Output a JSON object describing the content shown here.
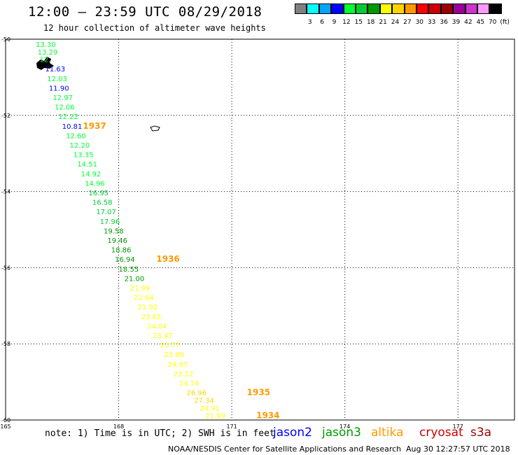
{
  "header": {
    "title": "12:00 – 23:59 UTC 08/29/2018",
    "subtitle": "12 hour collection of altimeter wave heights"
  },
  "colorbar": {
    "colors": [
      "#808080",
      "#00ffff",
      "#00a6ff",
      "#0000ff",
      "#00ff33",
      "#00cc33",
      "#009900",
      "#ffff00",
      "#ffd400",
      "#ff9900",
      "#ff0000",
      "#cc0000",
      "#990000",
      "#990099",
      "#cc33cc",
      "#ff99ff",
      "#000000"
    ],
    "labels": [
      "3",
      "6",
      "9",
      "12",
      "15",
      "18",
      "21",
      "24",
      "27",
      "30",
      "33",
      "36",
      "39",
      "42",
      "45",
      "70",
      "(ft)"
    ]
  },
  "chart_data": {
    "type": "scatter",
    "title": "12:00 – 23:59 UTC 08/29/2018",
    "subtitle": "12 hour collection of altimeter wave heights",
    "xlim": [
      165,
      178.5
    ],
    "ylim": [
      -60,
      -50
    ],
    "x_ticks": [
      "165",
      "168",
      "171",
      "174",
      "177"
    ],
    "x_tick_values": [
      165,
      168,
      171,
      174,
      177
    ],
    "y_ticks": [
      "-50",
      "-52",
      "-54",
      "-56",
      "-58",
      "-60"
    ],
    "y_tick_values": [
      -50,
      -52,
      -54,
      -56,
      -58,
      -60
    ],
    "grid": "dotted",
    "series": [
      {
        "name": "altika",
        "points": [
          {
            "lon": 165.8,
            "lat": -50.2,
            "v": "13.30",
            "c": "#00ff33"
          },
          {
            "lon": 165.85,
            "lat": -50.4,
            "v": "13.29",
            "c": "#00ff33"
          },
          {
            "lon": 165.9,
            "lat": -50.6,
            "v": "12.",
            "c": "#00ff33"
          },
          {
            "lon": 166.05,
            "lat": -50.85,
            "v": "11.63",
            "c": "#0000ff"
          },
          {
            "lon": 166.1,
            "lat": -51.1,
            "v": "12.03",
            "c": "#00ff33"
          },
          {
            "lon": 166.15,
            "lat": -51.35,
            "v": "11.90",
            "c": "#0000ff"
          },
          {
            "lon": 166.25,
            "lat": -51.6,
            "v": "12.97",
            "c": "#00ff33"
          },
          {
            "lon": 166.3,
            "lat": -51.85,
            "v": "12.06",
            "c": "#00ff33"
          },
          {
            "lon": 166.4,
            "lat": -52.1,
            "v": "12.22",
            "c": "#00ff33"
          },
          {
            "lon": 166.5,
            "lat": -52.35,
            "v": "10.81",
            "c": "#0000ff"
          },
          {
            "lon": 166.6,
            "lat": -52.6,
            "v": "12.60",
            "c": "#00ff33"
          },
          {
            "lon": 166.7,
            "lat": -52.85,
            "v": "12.20",
            "c": "#00ff33"
          },
          {
            "lon": 166.8,
            "lat": -53.1,
            "v": "13.35",
            "c": "#00ff33"
          },
          {
            "lon": 166.9,
            "lat": -53.35,
            "v": "14.51",
            "c": "#00ff33"
          },
          {
            "lon": 167.0,
            "lat": -53.6,
            "v": "14.92",
            "c": "#00ff33"
          },
          {
            "lon": 167.1,
            "lat": -53.85,
            "v": "14.96",
            "c": "#00ff33"
          },
          {
            "lon": 167.2,
            "lat": -54.1,
            "v": "16.95",
            "c": "#00cc33"
          },
          {
            "lon": 167.3,
            "lat": -54.35,
            "v": "16.58",
            "c": "#00cc33"
          },
          {
            "lon": 167.4,
            "lat": -54.6,
            "v": "17.07",
            "c": "#00cc33"
          },
          {
            "lon": 167.5,
            "lat": -54.85,
            "v": "17.96",
            "c": "#00cc33"
          },
          {
            "lon": 167.6,
            "lat": -55.1,
            "v": "19.58",
            "c": "#009900"
          },
          {
            "lon": 167.7,
            "lat": -55.35,
            "v": "19.46",
            "c": "#009900"
          },
          {
            "lon": 167.8,
            "lat": -55.6,
            "v": "18.86",
            "c": "#009900"
          },
          {
            "lon": 167.9,
            "lat": -55.85,
            "v": "16.94",
            "c": "#009900"
          },
          {
            "lon": 168.0,
            "lat": -56.1,
            "v": "18.55",
            "c": "#009900"
          },
          {
            "lon": 168.15,
            "lat": -56.35,
            "v": "21.00",
            "c": "#009900"
          },
          {
            "lon": 168.3,
            "lat": -56.6,
            "v": "21.99",
            "c": "#ffff00"
          },
          {
            "lon": 168.4,
            "lat": -56.85,
            "v": "22.64",
            "c": "#ffff00"
          },
          {
            "lon": 168.5,
            "lat": -57.1,
            "v": "21.92",
            "c": "#ffff00"
          },
          {
            "lon": 168.6,
            "lat": -57.35,
            "v": "23.65",
            "c": "#ffff00"
          },
          {
            "lon": 168.75,
            "lat": -57.6,
            "v": "24.04",
            "c": "#ffff00"
          },
          {
            "lon": 168.9,
            "lat": -57.85,
            "v": "23.47",
            "c": "#ffff00"
          },
          {
            "lon": 169.1,
            "lat": -58.1,
            "v": "23.77",
            "c": "#ffff00"
          },
          {
            "lon": 169.2,
            "lat": -58.35,
            "v": "23.89",
            "c": "#ffff00"
          },
          {
            "lon": 169.3,
            "lat": -58.6,
            "v": "24.97",
            "c": "#ffff00"
          },
          {
            "lon": 169.45,
            "lat": -58.85,
            "v": "23.22",
            "c": "#ffff00"
          },
          {
            "lon": 169.6,
            "lat": -59.1,
            "v": "24.74",
            "c": "#ffff00"
          },
          {
            "lon": 169.8,
            "lat": -59.35,
            "v": "26.96",
            "c": "#ffd400"
          },
          {
            "lon": 170.0,
            "lat": -59.55,
            "v": "27.34",
            "c": "#ffd400"
          },
          {
            "lon": 170.15,
            "lat": -59.75,
            "v": "24.91",
            "c": "#ffff00"
          },
          {
            "lon": 170.3,
            "lat": -59.95,
            "v": "21.99",
            "c": "#ffff00"
          }
        ]
      }
    ],
    "time_labels": [
      {
        "lon": 167.05,
        "lat": -52.35,
        "v": "1937"
      },
      {
        "lon": 169.0,
        "lat": -55.85,
        "v": "1936"
      },
      {
        "lon": 171.4,
        "lat": -59.35,
        "v": "1935"
      },
      {
        "lon": 171.65,
        "lat": -59.95,
        "v": "1934"
      }
    ]
  },
  "footer": {
    "note": "note: 1) Time is in UTC; 2) SWH is in feet",
    "satellites": [
      {
        "name": "jason2",
        "color": "#0000ff"
      },
      {
        "name": "jason3",
        "color": "#009900"
      },
      {
        "name": "altika",
        "color": "#ff9900"
      },
      {
        "name": "cryosat",
        "color": "#cc0000"
      },
      {
        "name": "s3a",
        "color": "#990000"
      }
    ],
    "credit": "NOAA/NESDIS Center for Satellite Applications and Research",
    "timestamp": "Aug 30 12:27:57 UTC 2018"
  }
}
